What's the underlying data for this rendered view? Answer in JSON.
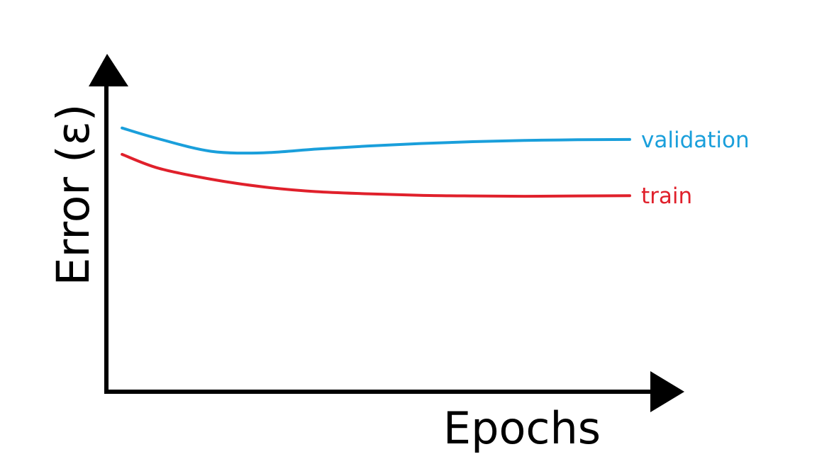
{
  "chart_data": {
    "type": "line",
    "xlabel": "Epochs",
    "ylabel": "Error (ε)",
    "xlim": [
      0,
      10
    ],
    "ylim": [
      0,
      10
    ],
    "ticks": "none",
    "grid": false,
    "legend": "inline-right",
    "series": [
      {
        "name": "validation",
        "color": "#1a9fdb",
        "x": [
          0.3,
          1.0,
          2.0,
          3.0,
          4.0,
          5.0,
          6.0,
          7.0,
          8.0,
          9.0,
          10.0
        ],
        "y": [
          8.5,
          8.15,
          7.75,
          7.7,
          7.82,
          7.92,
          8.0,
          8.06,
          8.1,
          8.12,
          8.13
        ]
      },
      {
        "name": "train",
        "color": "#e0202b",
        "x": [
          0.3,
          1.0,
          2.0,
          3.0,
          4.0,
          5.0,
          6.0,
          7.0,
          8.0,
          9.0,
          10.0
        ],
        "y": [
          7.65,
          7.2,
          6.85,
          6.6,
          6.45,
          6.38,
          6.33,
          6.31,
          6.3,
          6.31,
          6.32
        ]
      }
    ]
  }
}
